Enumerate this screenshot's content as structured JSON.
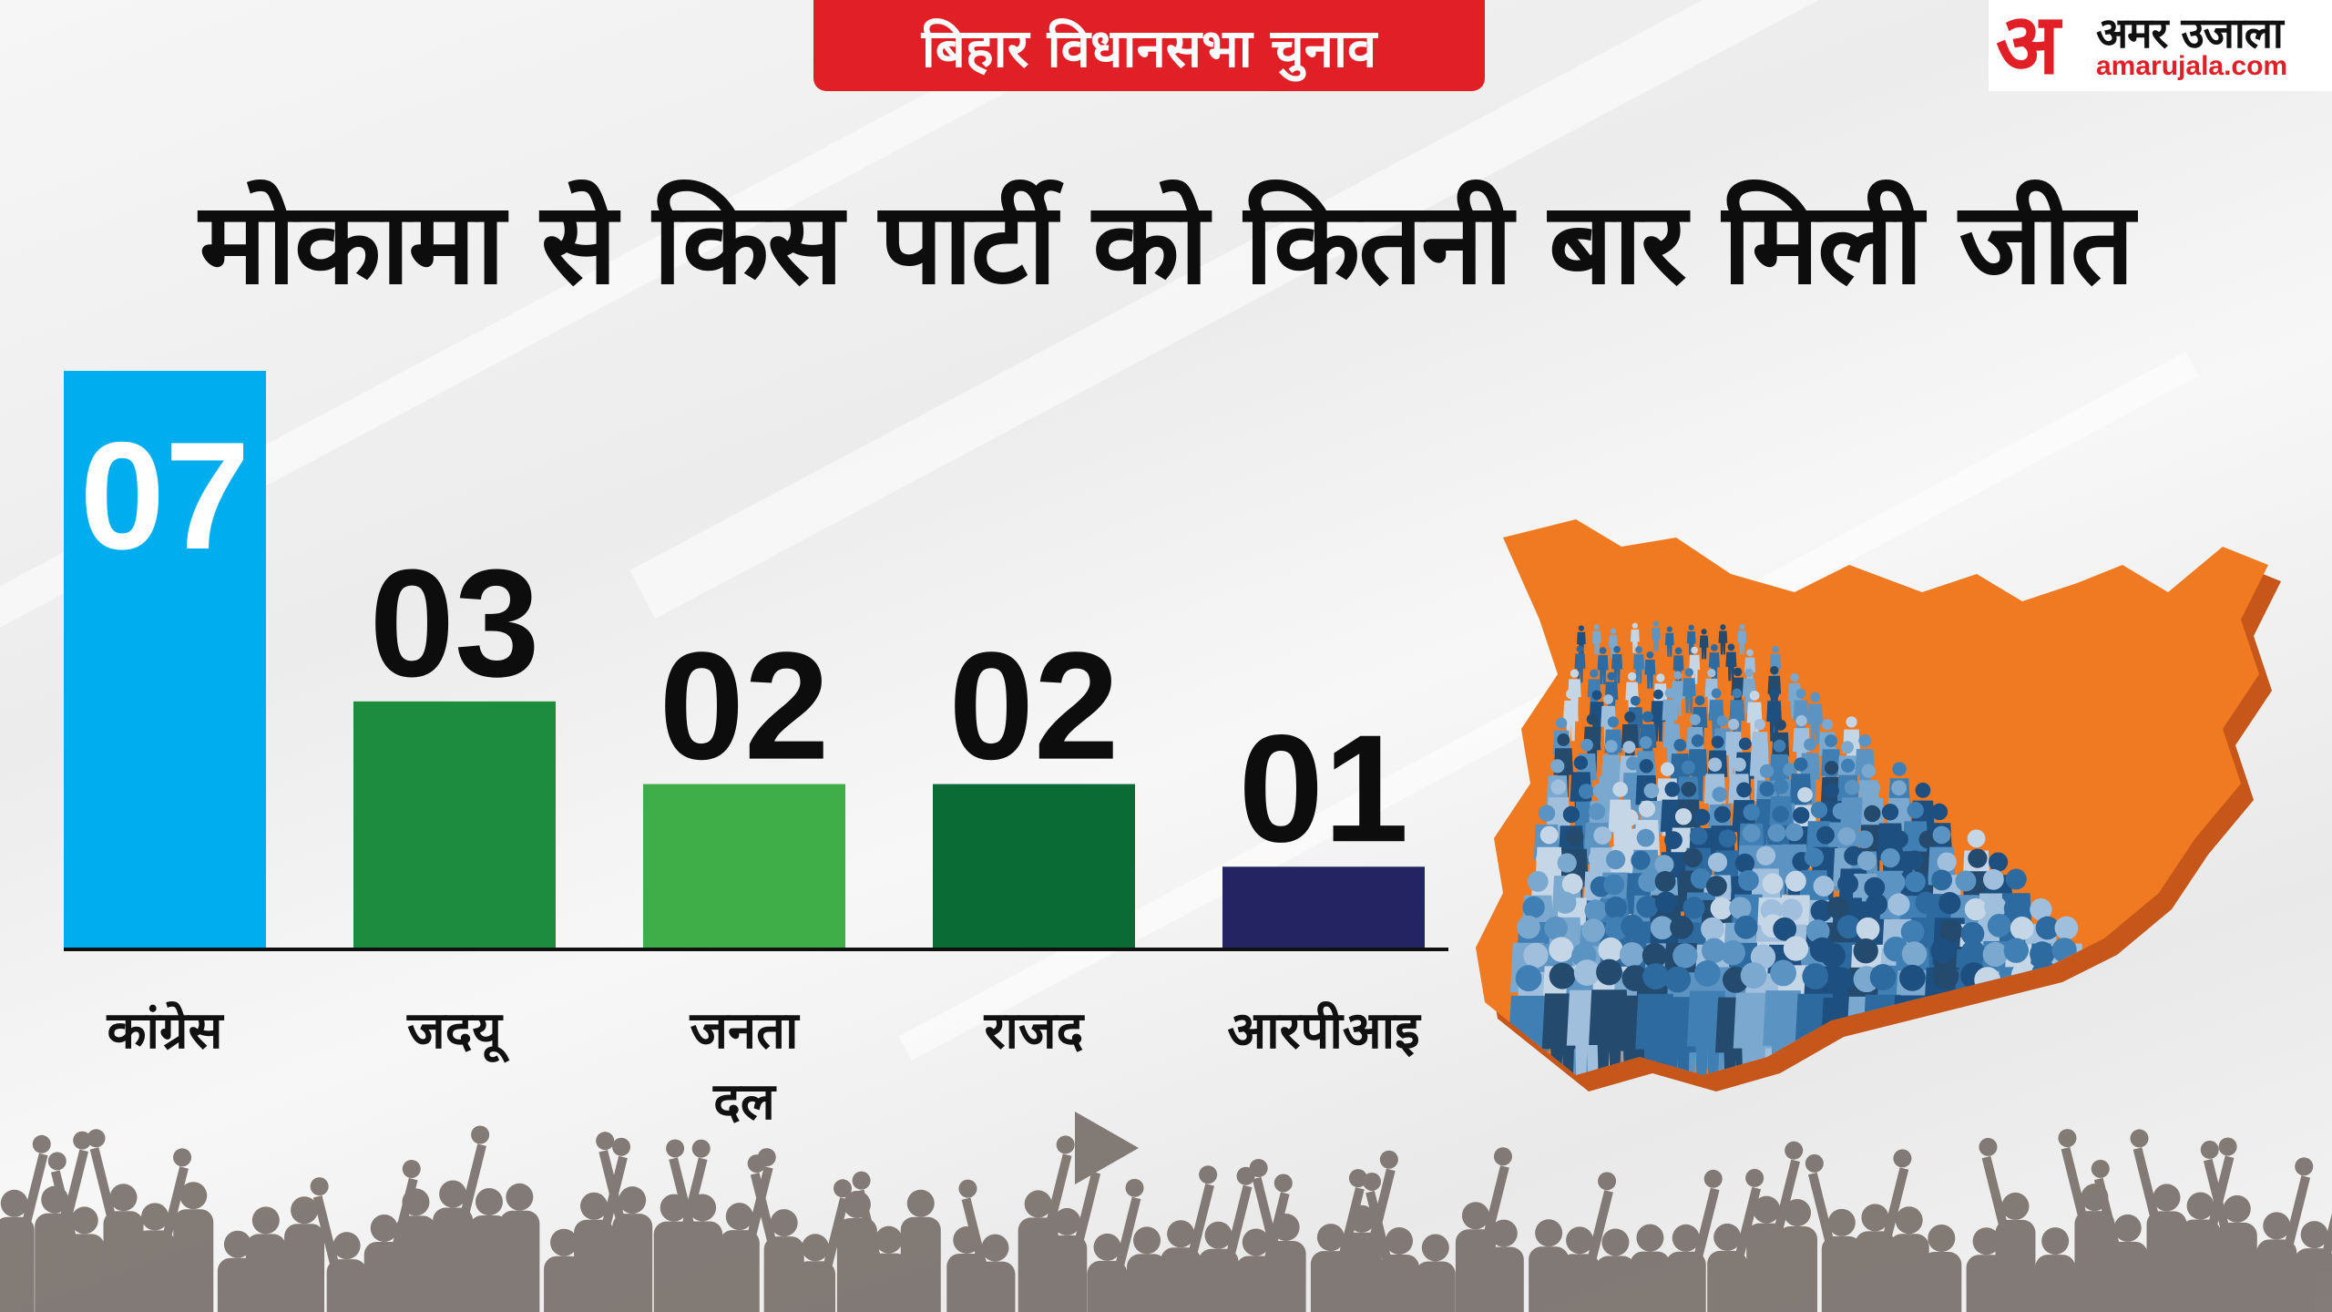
{
  "header": {
    "badge_text": "बिहार विधानसभा चुनाव"
  },
  "brand": {
    "mark": "अ",
    "name": "अमर उजाला",
    "url": "amarujala.com"
  },
  "title": "मोकामा से किस पार्टी को कितनी बार मिली जीत",
  "chart_data": {
    "type": "bar",
    "categories": [
      "कांग्रेस",
      "जदयू",
      "जनता दल",
      "राजद",
      "आरपीआइ"
    ],
    "values": [
      7,
      3,
      2,
      2,
      1
    ],
    "value_labels": [
      "07",
      "03",
      "02",
      "02",
      "01"
    ],
    "colors": [
      "#00aeef",
      "#1e8c3e",
      "#3fae49",
      "#0b6b35",
      "#232461"
    ],
    "ylim": [
      0,
      7
    ],
    "grid": false,
    "legend": "none"
  },
  "colors": {
    "accent": "#e01f26",
    "map": "#f07a22",
    "map_side": "#c6561a"
  }
}
